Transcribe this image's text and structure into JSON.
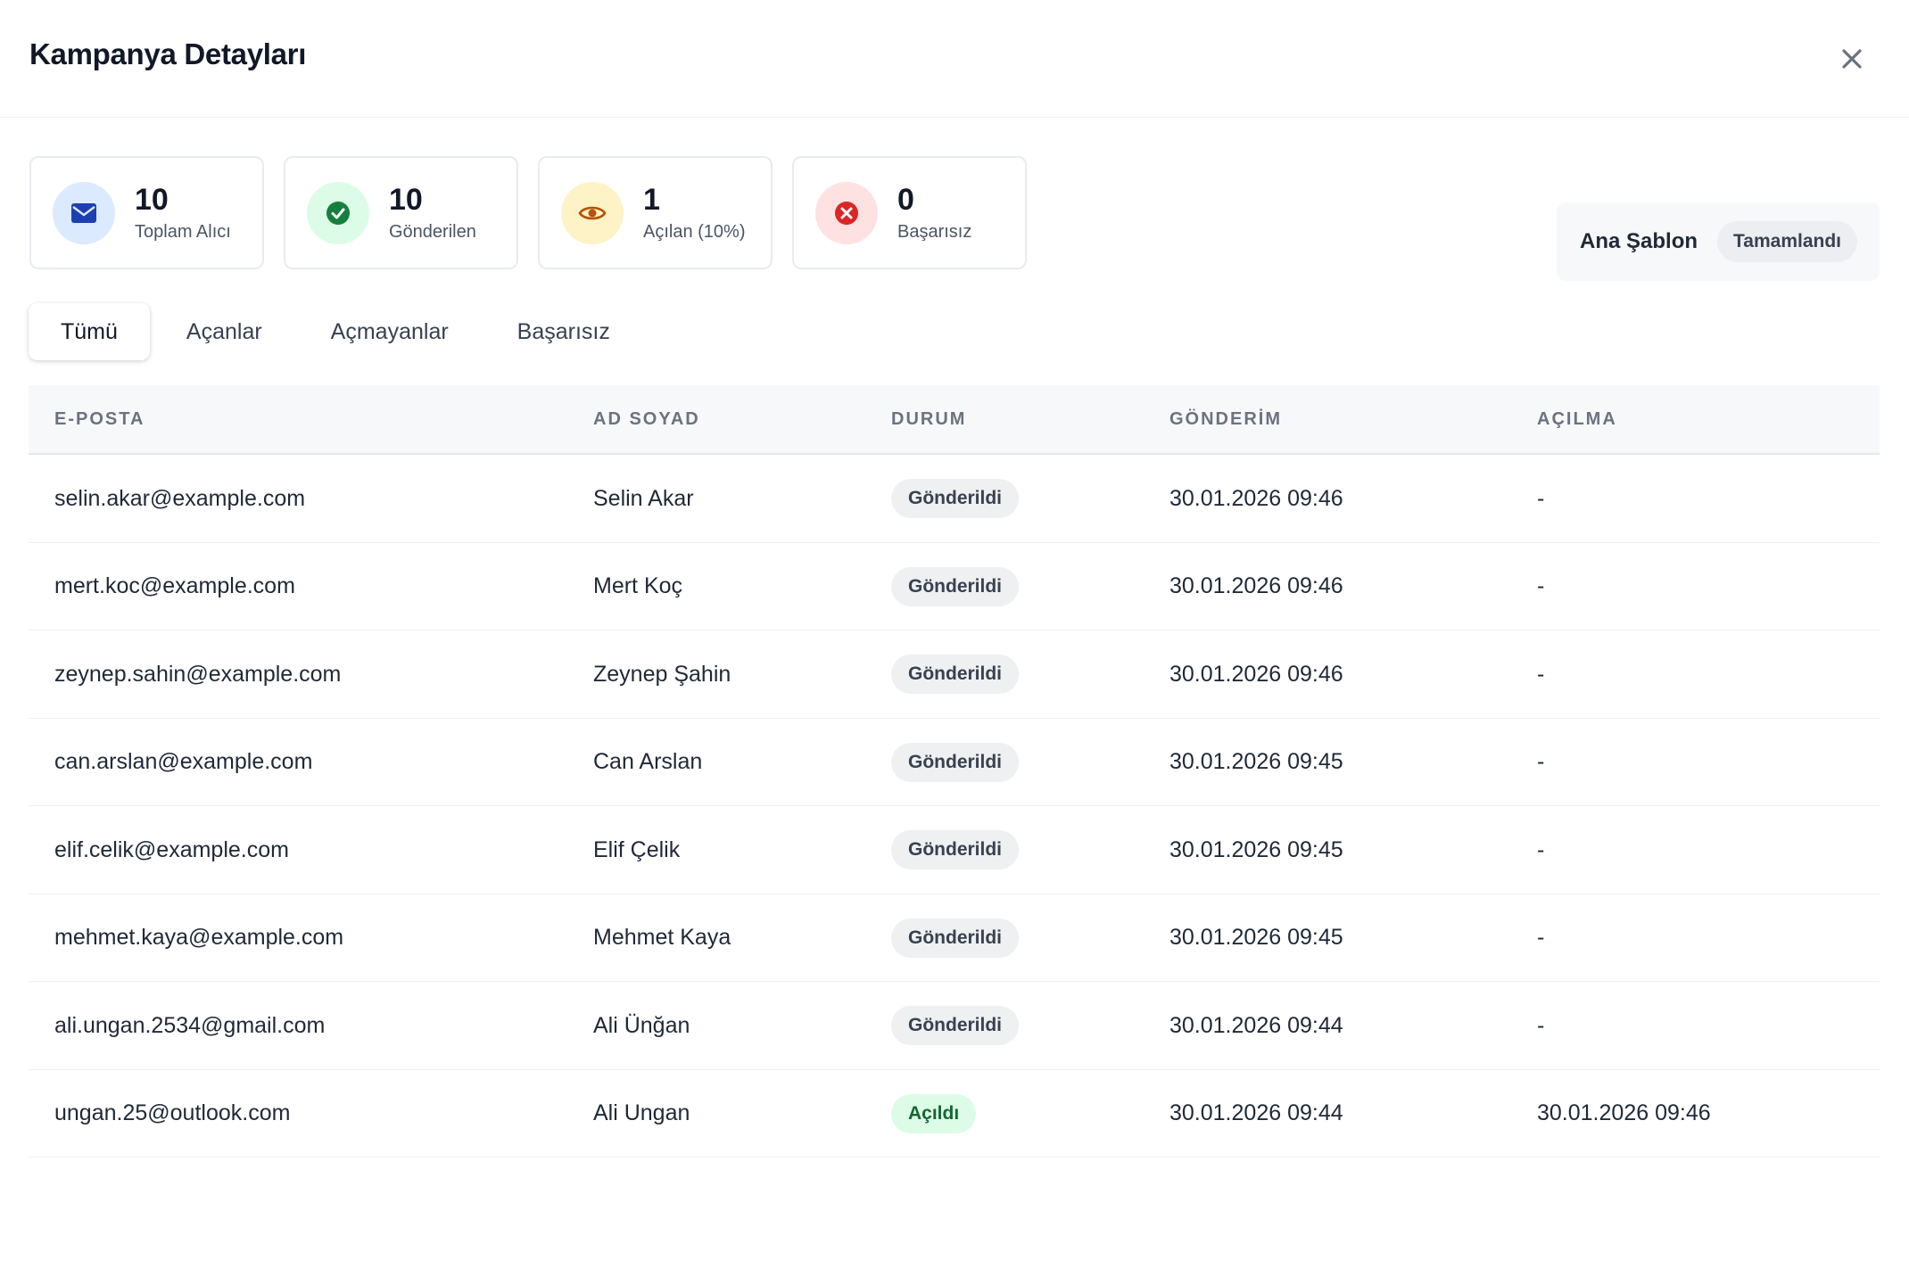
{
  "modal": {
    "title": "Kampanya Detayları"
  },
  "stats": [
    {
      "value": "10",
      "label": "Toplam Alıcı",
      "icon": "envelope-icon",
      "icon_color": "#1e40af",
      "bg": "#dbeafe"
    },
    {
      "value": "10",
      "label": "Gönderilen",
      "icon": "check-circle-icon",
      "icon_color": "#15803d",
      "bg": "#dcfce7"
    },
    {
      "value": "1",
      "label": "Açılan (10%)",
      "icon": "eye-icon",
      "icon_color": "#b45309",
      "bg": "#fef3c7"
    },
    {
      "value": "0",
      "label": "Başarısız",
      "icon": "x-circle-icon",
      "icon_color": "#dc2626",
      "bg": "#fee2e2"
    }
  ],
  "template": {
    "name": "Ana Şablon",
    "status": "Tamamlandı"
  },
  "tabs": [
    {
      "label": "Tümü",
      "active": true
    },
    {
      "label": "Açanlar",
      "active": false
    },
    {
      "label": "Açmayanlar",
      "active": false
    },
    {
      "label": "Başarısız",
      "active": false
    }
  ],
  "table": {
    "headers": {
      "email": "E-POSTA",
      "name": "AD SOYAD",
      "status": "DURUM",
      "sent": "GÖNDERİM",
      "opened": "AÇILMA"
    },
    "rows": [
      {
        "email": "selin.akar@example.com",
        "name": "Selin Akar",
        "status": "Gönderildi",
        "sent": "30.01.2026 09:46",
        "opened": "-"
      },
      {
        "email": "mert.koc@example.com",
        "name": "Mert Koç",
        "status": "Gönderildi",
        "sent": "30.01.2026 09:46",
        "opened": "-"
      },
      {
        "email": "zeynep.sahin@example.com",
        "name": "Zeynep Şahin",
        "status": "Gönderildi",
        "sent": "30.01.2026 09:46",
        "opened": "-"
      },
      {
        "email": "can.arslan@example.com",
        "name": "Can Arslan",
        "status": "Gönderildi",
        "sent": "30.01.2026 09:45",
        "opened": "-"
      },
      {
        "email": "elif.celik@example.com",
        "name": "Elif Çelik",
        "status": "Gönderildi",
        "sent": "30.01.2026 09:45",
        "opened": "-"
      },
      {
        "email": "mehmet.kaya@example.com",
        "name": "Mehmet Kaya",
        "status": "Gönderildi",
        "sent": "30.01.2026 09:45",
        "opened": "-"
      },
      {
        "email": "ali.ungan.2534@gmail.com",
        "name": "Ali Ünğan",
        "status": "Gönderildi",
        "sent": "30.01.2026 09:44",
        "opened": "-"
      },
      {
        "email": "ungan.25@outlook.com",
        "name": "Ali Ungan",
        "status": "Açıldı",
        "sent": "30.01.2026 09:44",
        "opened": "30.01.2026 09:46"
      }
    ]
  }
}
